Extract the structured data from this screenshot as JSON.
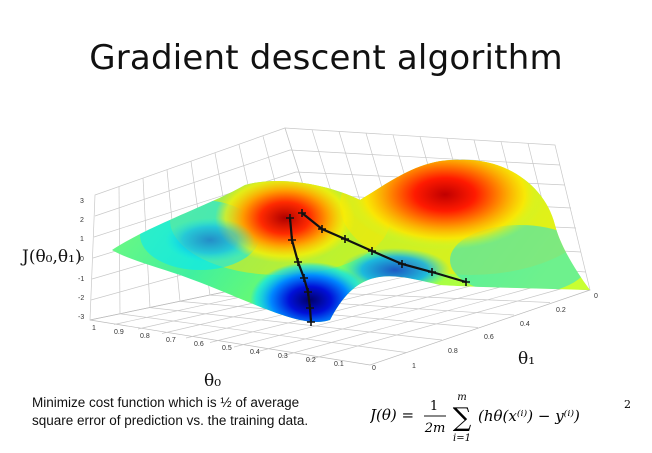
{
  "slide": {
    "title": "Gradient descent algorithm"
  },
  "plot": {
    "z_axis_label": "J(θ₀,θ₁)",
    "x_axis_label": "θ₀",
    "y_axis_label": "θ₁",
    "z_ticks": [
      "3",
      "2",
      "1",
      "0",
      "-1",
      "-2",
      "-3"
    ],
    "x_ticks": [
      "1",
      "0.9",
      "0.8",
      "0.7",
      "0.6",
      "0.5",
      "0.4",
      "0.3",
      "0.2",
      "0.1",
      "0"
    ],
    "y_ticks": [
      "0",
      "0.2",
      "0.4",
      "0.6",
      "0.8",
      "1"
    ]
  },
  "caption": {
    "line1": "Minimize cost function which is ½ of average",
    "line2": "square error of prediction vs. the training data."
  },
  "formula": {
    "lhs": "J(θ) =",
    "frac_num": "1",
    "frac_den": "2m",
    "sigma": "∑",
    "sum_upper": "m",
    "sum_lower": "i=1",
    "body": "(hθ(x⁽ⁱ⁾) − y⁽ⁱ⁾)",
    "exponent": "2"
  }
}
